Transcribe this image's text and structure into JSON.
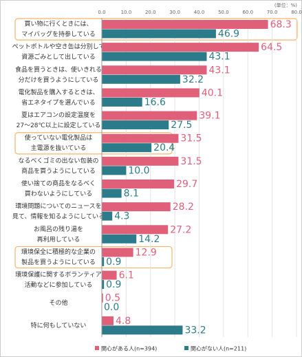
{
  "chart_data": {
    "type": "hbar",
    "unit_label": "(単位：%)",
    "categories": [
      [
        "買い物に行くときには、",
        "マイバッグを持参している"
      ],
      [
        "ペットボトルや空き缶は分別して",
        "資源ごみとして出している"
      ],
      [
        "食品を買うときは、使いきれる",
        "分だけを買うようにしている"
      ],
      [
        "電化製品を購入するときは、",
        "省エネタイプを選んでいる"
      ],
      [
        "夏はエアコンの設定温度を",
        "27～28℃以上に設定している"
      ],
      [
        "使っていない電化製品は",
        "主電源を抜いている"
      ],
      [
        "なるべくゴミの出ない包装の",
        "商品を買うようにしている"
      ],
      [
        "使い捨ての商品をなるべく",
        "買わないようにしている"
      ],
      [
        "環境問題についてのニュースを",
        "見て、情報を知るようにしている"
      ],
      [
        "お風呂の残り湯を",
        "再利用している"
      ],
      [
        "環境保全に積極的な企業の",
        "製品を買うようにしている"
      ],
      [
        "環境保護に関するボランティア",
        "活動などに参加している"
      ],
      [
        "その他"
      ],
      [
        "特に何もしていない"
      ]
    ],
    "series": [
      {
        "name": "関心がある人(n=394)",
        "color": "#e0607a",
        "values": [
          68.3,
          64.5,
          43.1,
          40.1,
          39.1,
          31.5,
          31.5,
          29.7,
          28.2,
          27.2,
          12.9,
          6.1,
          0.5,
          4.8
        ],
        "value_labels": [
          "68.3",
          "64.5",
          "43.1",
          "40.1",
          "39.1",
          "31.5",
          "31.5",
          "29.7",
          "28.2",
          "27.2",
          "12.9",
          "6.1",
          "0.5",
          "4.8"
        ]
      },
      {
        "name": "関心がない人(n=211)",
        "color": "#2c7b8a",
        "values": [
          46.9,
          43.1,
          32.2,
          16.6,
          27.5,
          20.4,
          10.0,
          8.1,
          4.3,
          14.2,
          0.9,
          0.9,
          0.0,
          33.2
        ],
        "value_labels": [
          "46.9",
          "43.1",
          "32.2",
          "16.6",
          "27.5",
          "20.4",
          "10.0",
          "8.1",
          "4.3",
          "14.2",
          "0.9",
          "0.9",
          "0.0",
          "33.2"
        ]
      }
    ],
    "xlim": [
      0,
      80
    ],
    "xticks": [
      {
        "value": 0,
        "label": "0.0"
      },
      {
        "value": 10,
        "label": "10.0"
      },
      {
        "value": 20,
        "label": "20.0"
      },
      {
        "value": 30,
        "label": "30.0"
      },
      {
        "value": 40,
        "label": "40.0"
      },
      {
        "value": 50,
        "label": "50.0"
      },
      {
        "value": 60,
        "label": "60.0"
      },
      {
        "value": 70,
        "label": "70.0"
      },
      {
        "value": 80,
        "label": "80.0"
      }
    ],
    "grid": true
  }
}
